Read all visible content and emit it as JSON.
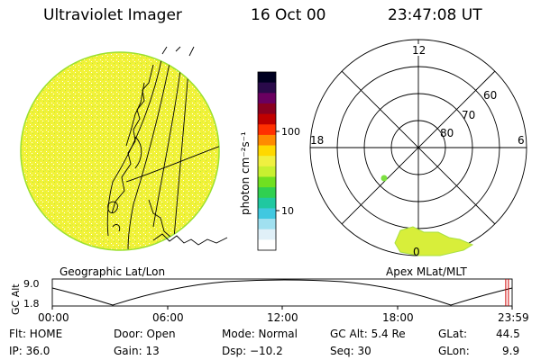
{
  "header": {
    "title": "Ultraviolet Imager",
    "date": "16 Oct 00",
    "time": "23:47:08 UT"
  },
  "colorbar": {
    "unit_label": "photon cm⁻²s⁻¹",
    "ticks": [
      "100",
      "10"
    ],
    "colors": [
      "#000020",
      "#2a0a4a",
      "#6a0060",
      "#8a0020",
      "#c00000",
      "#ff3000",
      "#ff8a00",
      "#ffd800",
      "#f0f040",
      "#c8f030",
      "#70e020",
      "#30d050",
      "#20c8a0",
      "#40c8e0",
      "#a0e0f0",
      "#e0f0f8",
      "#ffffff"
    ]
  },
  "polar": {
    "mlt_labels": {
      "top": "12",
      "left": "18",
      "right": "6",
      "bottom": "0"
    },
    "lat_labels": [
      "60",
      "70",
      "80"
    ]
  },
  "footer": {
    "geo_label": "Geographic Lat/Lon",
    "apex_label": "Apex MLat/MLT",
    "alt_axis_label": "GC Alt",
    "alt_ticks": [
      "9.0",
      "1.8"
    ],
    "time_ticks": [
      "00:00",
      "06:00",
      "12:00",
      "18:00",
      "23:59"
    ],
    "current_time_fraction": 0.99
  },
  "info": {
    "flt": "Flt: HOME",
    "ip": "IP: 36.0",
    "door": "Door: Open",
    "gain": "Gain: 13",
    "mode": "Mode: Normal",
    "dsp": "Dsp:  −10.2",
    "gcalt": "GC Alt: 5.4 Re",
    "seq": "Seq: 30",
    "glat_label": "GLat:",
    "glat_value": "44.5",
    "glon_label": "GLon:",
    "glon_value": "9.9"
  },
  "accent": {
    "disk": "#f2f238",
    "disk_edge": "#9ae030",
    "marker": "#7ce040"
  }
}
